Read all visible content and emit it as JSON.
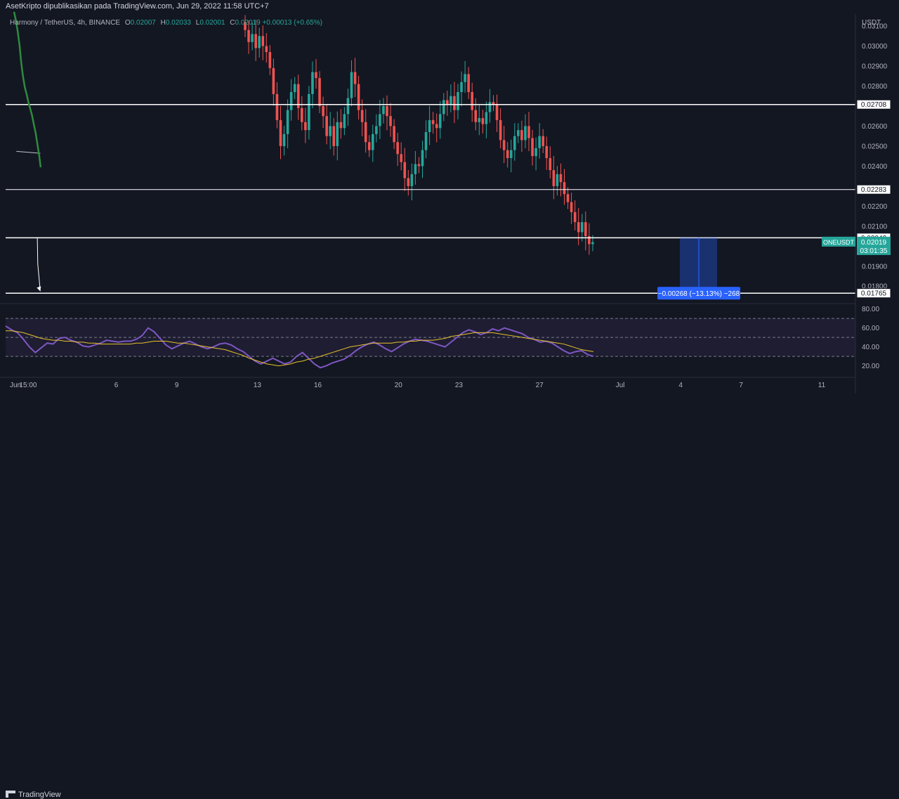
{
  "header": {
    "publish_note": "AsetKripto dipublikasikan pada TradingView.com, Jun 29, 2022 11:58 UTC+7",
    "symbol": "Harmony / TetherUS, 4h, BINANCE",
    "ohlc": {
      "o_label": "O",
      "o": "0.02007",
      "h_label": "H",
      "h": "0.02033",
      "l_label": "L",
      "l": "0.02001",
      "c_label": "C",
      "c": "0.02019",
      "change": "+0.00013 (+0.65%)"
    }
  },
  "colors": {
    "up": "#26a69a",
    "down": "#ef5350",
    "ma": "#2e8b3e",
    "rsi": "#7e57c2",
    "rsi_ma": "#e6c229",
    "measure": "#2962ff",
    "bg": "#131722",
    "grid": "#2a2e39"
  },
  "chart_data": [
    {
      "type": "candlestick",
      "currency": "USDT",
      "x_ticks": [
        "Jun",
        "15:00",
        "6",
        "9",
        "13",
        "16",
        "20",
        "23",
        "27",
        "Jul",
        "4",
        "7",
        "11"
      ],
      "y_ticks": [
        "0.03100",
        "0.03000",
        "0.02900",
        "0.02800",
        "0.02600",
        "0.02500",
        "0.02400",
        "0.02200",
        "0.02100",
        "0.01900",
        "0.01800"
      ],
      "ylim": [
        0.0172,
        0.0316
      ],
      "levels": [
        0.02708,
        0.02283,
        0.02042,
        0.01765
      ],
      "level_labels": [
        "0.02708",
        "0.02283",
        "0.02042",
        "0.01765"
      ],
      "last_price": {
        "symbol": "ONEUSDT",
        "price": "0.02019",
        "countdown": "03:01:35"
      },
      "measure_label": "−0.00268 (−13.13%) −268",
      "closes": [
        0.0308,
        0.0302,
        0.0306,
        0.0299,
        0.0305,
        0.03,
        0.0297,
        0.0289,
        0.0276,
        0.0263,
        0.025,
        0.0256,
        0.0268,
        0.0277,
        0.0281,
        0.0269,
        0.0262,
        0.0258,
        0.0276,
        0.0287,
        0.0284,
        0.027,
        0.0265,
        0.0255,
        0.026,
        0.025,
        0.0262,
        0.0259,
        0.0266,
        0.0274,
        0.0287,
        0.0281,
        0.0268,
        0.0262,
        0.0252,
        0.0248,
        0.0256,
        0.026,
        0.0266,
        0.027,
        0.0265,
        0.026,
        0.0252,
        0.0246,
        0.0242,
        0.0234,
        0.023,
        0.0236,
        0.0241,
        0.024,
        0.0248,
        0.0257,
        0.0263,
        0.0261,
        0.0259,
        0.0266,
        0.0273,
        0.0271,
        0.0275,
        0.0268,
        0.0277,
        0.0282,
        0.0286,
        0.0277,
        0.0268,
        0.0262,
        0.0264,
        0.0261,
        0.0267,
        0.0272,
        0.0271,
        0.0263,
        0.0253,
        0.0248,
        0.0244,
        0.0248,
        0.0255,
        0.0258,
        0.0253,
        0.026,
        0.0254,
        0.0245,
        0.0249,
        0.0255,
        0.025,
        0.0244,
        0.0238,
        0.023,
        0.0236,
        0.0232,
        0.0226,
        0.0222,
        0.0217,
        0.0212,
        0.0207,
        0.0212,
        0.0205,
        0.0201,
        0.0202
      ],
      "ma": [
        [
          0.0293,
          0.03171
        ],
        [
          0.03019,
          0.0313
        ],
        [
          0.03108,
          0.03076
        ],
        [
          0.03199,
          0.03007
        ],
        [
          0.03287,
          0.02917
        ],
        [
          0.03376,
          0.02847
        ],
        [
          0.03466,
          0.02793
        ],
        [
          0.03555,
          0.0276
        ],
        [
          0.03645,
          0.02719
        ],
        [
          0.03733,
          0.02687
        ],
        [
          0.03822,
          0.02654
        ],
        [
          0.03911,
          0.02609
        ],
        [
          0.04,
          0.02567
        ],
        [
          0.04088,
          0.02511
        ],
        [
          0.04177,
          0.02454
        ],
        [
          0.04252,
          0.02394
        ]
      ],
      "neckline": [
        [
          0.03047,
          0.02474
        ],
        [
          0.04237,
          0.02464
        ]
      ],
      "projection": [
        [
          0.04002,
          0.02042
        ],
        [
          0.04085,
          0.02042
        ],
        [
          0.04108,
          0.0191
        ],
        [
          0.0423,
          0.01775
        ]
      ]
    },
    {
      "type": "line",
      "indicator": "RSI",
      "y_ticks": [
        "80.00",
        "60.00",
        "40.00",
        "20.00"
      ],
      "ylim": [
        13,
        82
      ],
      "bands": [
        70,
        50,
        30
      ],
      "rsi": [
        62,
        58,
        55,
        48,
        40,
        34,
        39,
        44,
        43,
        49,
        50,
        47,
        45,
        41,
        40,
        42,
        44,
        47,
        46,
        45,
        46,
        46,
        48,
        52,
        60,
        56,
        49,
        42,
        38,
        41,
        44,
        46,
        43,
        40,
        38,
        40,
        43,
        44,
        42,
        38,
        35,
        30,
        25,
        22,
        25,
        28,
        25,
        22,
        24,
        30,
        34,
        28,
        22,
        18,
        20,
        23,
        25,
        27,
        31,
        36,
        40,
        43,
        45,
        42,
        38,
        35,
        39,
        43,
        46,
        48,
        47,
        46,
        44,
        42,
        40,
        45,
        50,
        55,
        58,
        56,
        53,
        55,
        59,
        57,
        60,
        58,
        56,
        54,
        50,
        48,
        45,
        46,
        44,
        40,
        36,
        33,
        35,
        36,
        32,
        30
      ],
      "rsi_ma": [
        57,
        57,
        56,
        55,
        53,
        51,
        49,
        48,
        47,
        47,
        46,
        46,
        45,
        45,
        44,
        44,
        43,
        43,
        43,
        43,
        43,
        43,
        44,
        44,
        45,
        46,
        46,
        46,
        45,
        44,
        44,
        43,
        42,
        41,
        40,
        39,
        38,
        37,
        35,
        33,
        31,
        28,
        26,
        24,
        22,
        21,
        20,
        21,
        22,
        24,
        25,
        27,
        28,
        30,
        32,
        34,
        36,
        38,
        40,
        41,
        42,
        43,
        44,
        44,
        44,
        44,
        45,
        45,
        46,
        46,
        47,
        47,
        47,
        48,
        49,
        51,
        52,
        53,
        54,
        55,
        55,
        55,
        55,
        54,
        53,
        52,
        51,
        50,
        49,
        48,
        47,
        46,
        45,
        44,
        43,
        41,
        39,
        37,
        36,
        35
      ]
    }
  ]
}
